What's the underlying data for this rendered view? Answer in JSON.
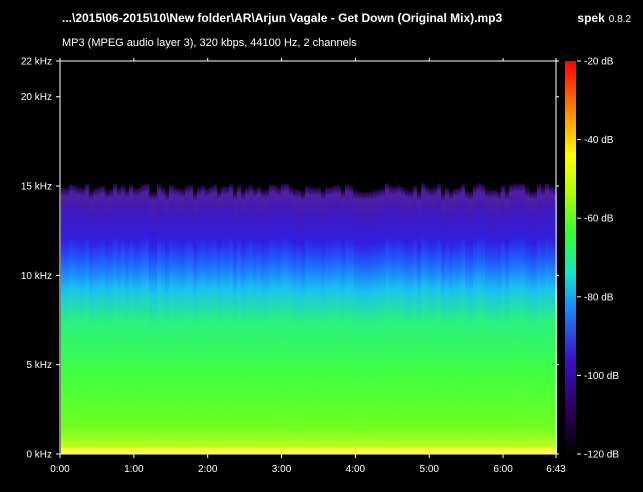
{
  "header": {
    "title": "...\\2015\\06-2015\\10\\New folder\\AR\\Arjun Vagale - Get Down (Original Mix).mp3",
    "app_name": "spek",
    "app_version": "0.8.2",
    "file_info": "MP3 (MPEG audio layer 3), 320 kbps, 44100 Hz, 2 channels"
  },
  "chart_data": {
    "type": "heatmap",
    "x_ticks": [
      "0:00",
      "1:00",
      "2:00",
      "3:00",
      "4:00",
      "5:00",
      "6:00",
      "6:43"
    ],
    "y_ticks": [
      "22 kHz",
      "20 kHz",
      "15 kHz",
      "10 kHz",
      "5 kHz",
      "0 kHz"
    ],
    "colorbar_ticks": [
      "-20 dB",
      "-40 dB",
      "-60 dB",
      "-80 dB",
      "-100 dB",
      "-120 dB"
    ],
    "duration_seconds": 403,
    "frequency_range_khz": [
      0,
      22
    ],
    "db_range": [
      -120,
      -20
    ],
    "cutoff_khz": 15,
    "colors": {
      "background": "#000000",
      "colormap": [
        "#000000",
        "#2a0050",
        "#3a10c8",
        "#1890ff",
        "#10e8c8",
        "#30ff30",
        "#a8ff00",
        "#ffff00",
        "#ff8000",
        "#ff0000"
      ]
    }
  }
}
